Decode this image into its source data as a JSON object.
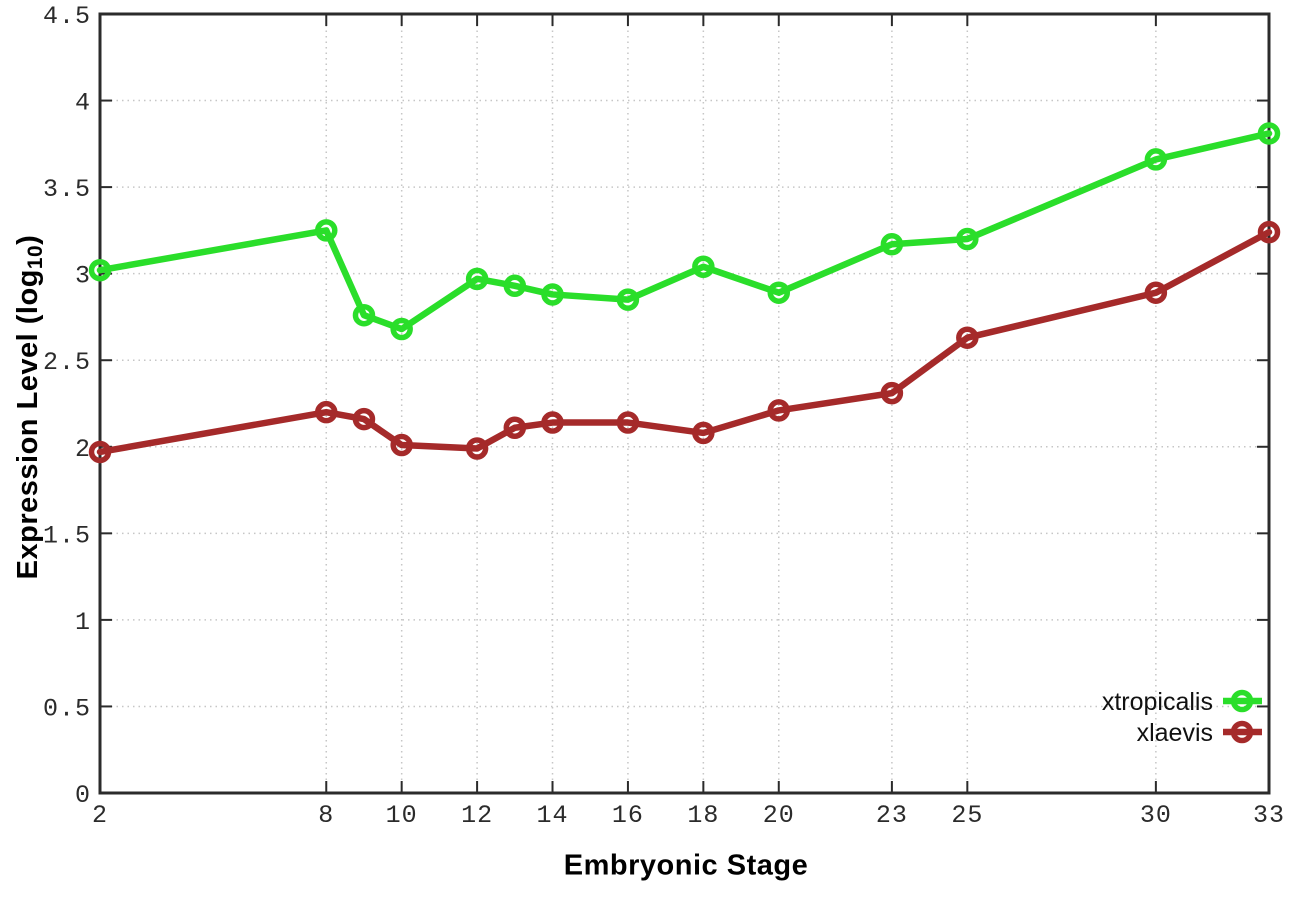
{
  "figure": {
    "background_color": "#ffffff",
    "border_color": "#2b2b2b",
    "grid_color": "#c6c6c6",
    "tick_label_color": "#2b2b2b"
  },
  "axes": {
    "x_title": "Embryonic Stage",
    "y_title_prefix": "Expression Level (log",
    "y_title_sub": "10",
    "y_title_suffix": ")"
  },
  "chart_data": {
    "type": "line",
    "title": "",
    "xlabel": "Embryonic Stage",
    "ylabel": "Expression Level (log10)",
    "x": [
      2,
      8,
      9,
      10,
      12,
      13,
      14,
      16,
      18,
      20,
      23,
      25,
      30,
      33
    ],
    "series": [
      {
        "name": "xtropicalis",
        "color": "#2ade2a",
        "values": [
          3.02,
          3.25,
          2.76,
          2.68,
          2.97,
          2.93,
          2.88,
          2.85,
          3.04,
          2.89,
          3.17,
          3.2,
          3.66,
          3.81
        ]
      },
      {
        "name": "xlaevis",
        "color": "#a52a2a",
        "values": [
          1.97,
          2.2,
          2.16,
          2.01,
          1.99,
          2.11,
          2.14,
          2.14,
          2.08,
          2.21,
          2.31,
          2.63,
          2.89,
          3.24
        ]
      }
    ],
    "xticks": [
      2,
      8,
      10,
      12,
      14,
      16,
      18,
      20,
      23,
      25,
      30,
      33
    ],
    "ytick_labels": [
      "0",
      "0.5",
      "1",
      "1.5",
      "2",
      "2.5",
      "3",
      "3.5",
      "4",
      "4.5"
    ],
    "ytick_values": [
      0,
      0.5,
      1,
      1.5,
      2,
      2.5,
      3,
      3.5,
      4,
      4.5
    ],
    "xlim": [
      2,
      33
    ],
    "ylim": [
      0,
      4.5
    ],
    "grid": true,
    "grid_style": "dotted",
    "marker": "open-circle",
    "legend_position": "bottom-right-inside"
  }
}
